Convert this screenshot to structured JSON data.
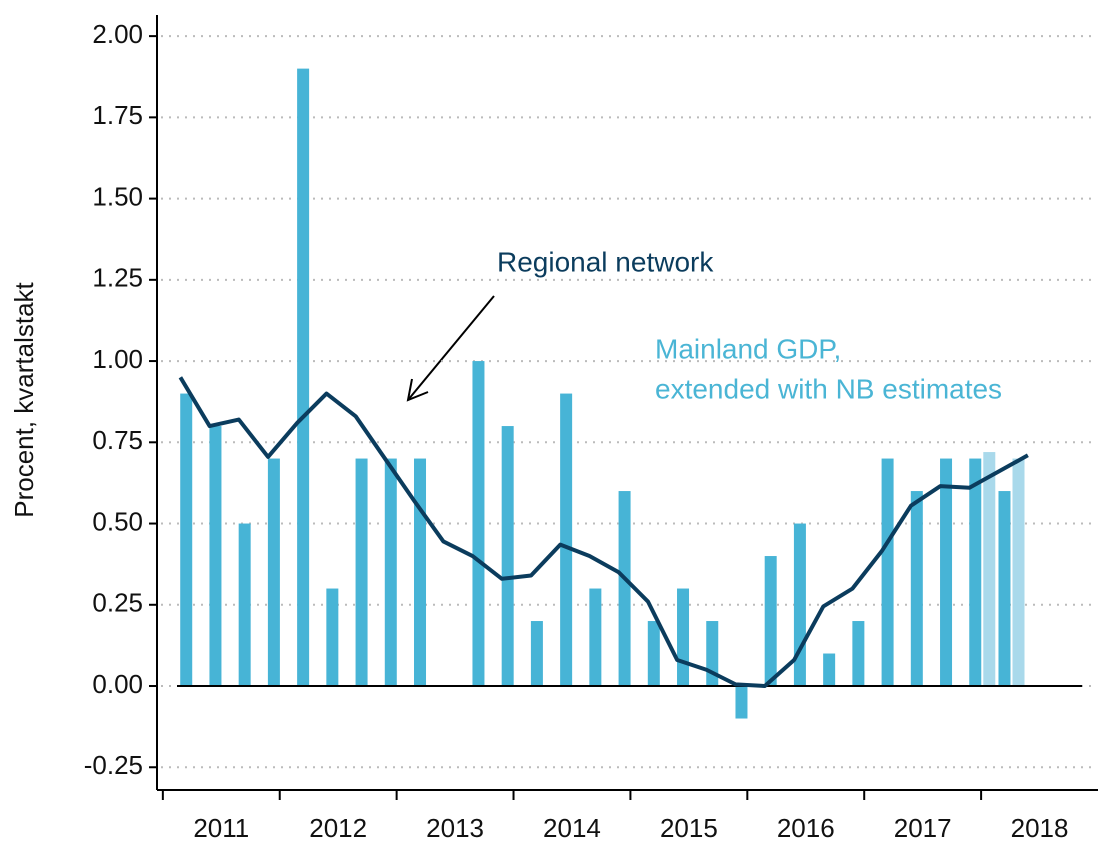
{
  "chart_data": {
    "type": "bar",
    "ylabel": "Procent, kvartalstakt",
    "ylim": [
      -0.32,
      2.065
    ],
    "yticks": [
      {
        "value": -0.25,
        "label": "-0.25"
      },
      {
        "value": 0,
        "label": "0.00"
      },
      {
        "value": 0.25,
        "label": "0.25"
      },
      {
        "value": 0.5,
        "label": "0.50"
      },
      {
        "value": 0.75,
        "label": "0.75"
      },
      {
        "value": 1,
        "label": "1.00"
      },
      {
        "value": 1.25,
        "label": "1.25"
      },
      {
        "value": 1.5,
        "label": "1.50"
      },
      {
        "value": 1.75,
        "label": "1.75"
      },
      {
        "value": 2,
        "label": "2.00"
      }
    ],
    "xlim": [
      2010.95,
      2019.0
    ],
    "xticks": [
      2011,
      2012,
      2013,
      2014,
      2015,
      2016,
      2017,
      2018
    ],
    "categories": [
      "2011",
      "2012",
      "2013",
      "2014",
      "2015",
      "2016",
      "2017",
      "2018"
    ],
    "grid": true,
    "series": [
      {
        "type": "bar",
        "color": "#47b4d6",
        "x": [
          2011.2,
          2011.45,
          2011.7,
          2011.95,
          2012.2,
          2012.45,
          2012.7,
          2012.95,
          2013.2,
          2013.45,
          2013.7,
          2013.95,
          2014.2,
          2014.45,
          2014.7,
          2014.95,
          2015.2,
          2015.45,
          2015.7,
          2015.95,
          2016.2,
          2016.45,
          2016.7,
          2016.95,
          2017.2,
          2017.45,
          2017.7,
          2017.95,
          2018.2
        ],
        "values": [
          0.9,
          0.8,
          0.5,
          0.7,
          1.9,
          0.3,
          0.7,
          0.7,
          0.7,
          0,
          1.0,
          0.8,
          0.2,
          0.9,
          0.3,
          0.6,
          0.2,
          0.3,
          0.2,
          -0.1,
          0.4,
          0.5,
          0.1,
          0.2,
          0.7,
          0.6,
          0.7,
          0.7,
          0.6
        ]
      },
      {
        "type": "bar",
        "color": "#a9d9eb",
        "x": [
          2018.07,
          2018.32
        ],
        "values": [
          0.72,
          0.7
        ]
      },
      {
        "type": "line",
        "color": "#0b3c5d",
        "x": [
          2011.15,
          2011.4,
          2011.65,
          2011.9,
          2012.15,
          2012.4,
          2012.65,
          2012.9,
          2013.15,
          2013.4,
          2013.65,
          2013.9,
          2014.15,
          2014.4,
          2014.65,
          2014.9,
          2015.15,
          2015.4,
          2015.65,
          2015.9,
          2016.15,
          2016.4,
          2016.65,
          2016.9,
          2017.15,
          2017.4,
          2017.65,
          2017.9,
          2018.15,
          2018.4
        ],
        "values": [
          0.95,
          0.8,
          0.82,
          0.705,
          0.81,
          0.9,
          0.83,
          0.7,
          0.57,
          0.445,
          0.4,
          0.33,
          0.34,
          0.435,
          0.4,
          0.35,
          0.26,
          0.08,
          0.05,
          0.005,
          0.0,
          0.08,
          0.245,
          0.3,
          0.415,
          0.555,
          0.615,
          0.61,
          0.66,
          0.71
        ]
      }
    ],
    "annotations": [
      {
        "lines": [
          "Regional network"
        ],
        "color": "#0b3c5d"
      },
      {
        "lines": [
          "Mainland GDP,",
          "extended with NB estimates"
        ],
        "color": "#4ab5d5"
      }
    ]
  }
}
